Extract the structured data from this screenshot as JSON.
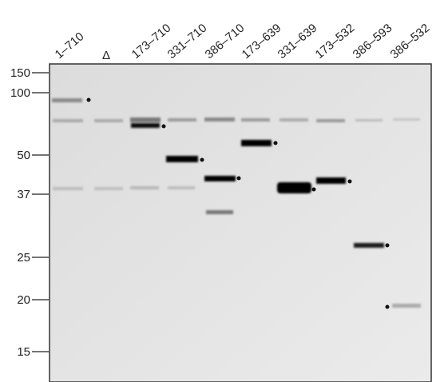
{
  "lanes": [
    "1–710",
    "Δ",
    "173–710",
    "331–710",
    "386–710",
    "173–639",
    "331–639",
    "173–532",
    "386–593",
    "386–532"
  ],
  "markers": [
    "150",
    "100",
    "50",
    "37",
    "25",
    "20",
    "15"
  ]
}
